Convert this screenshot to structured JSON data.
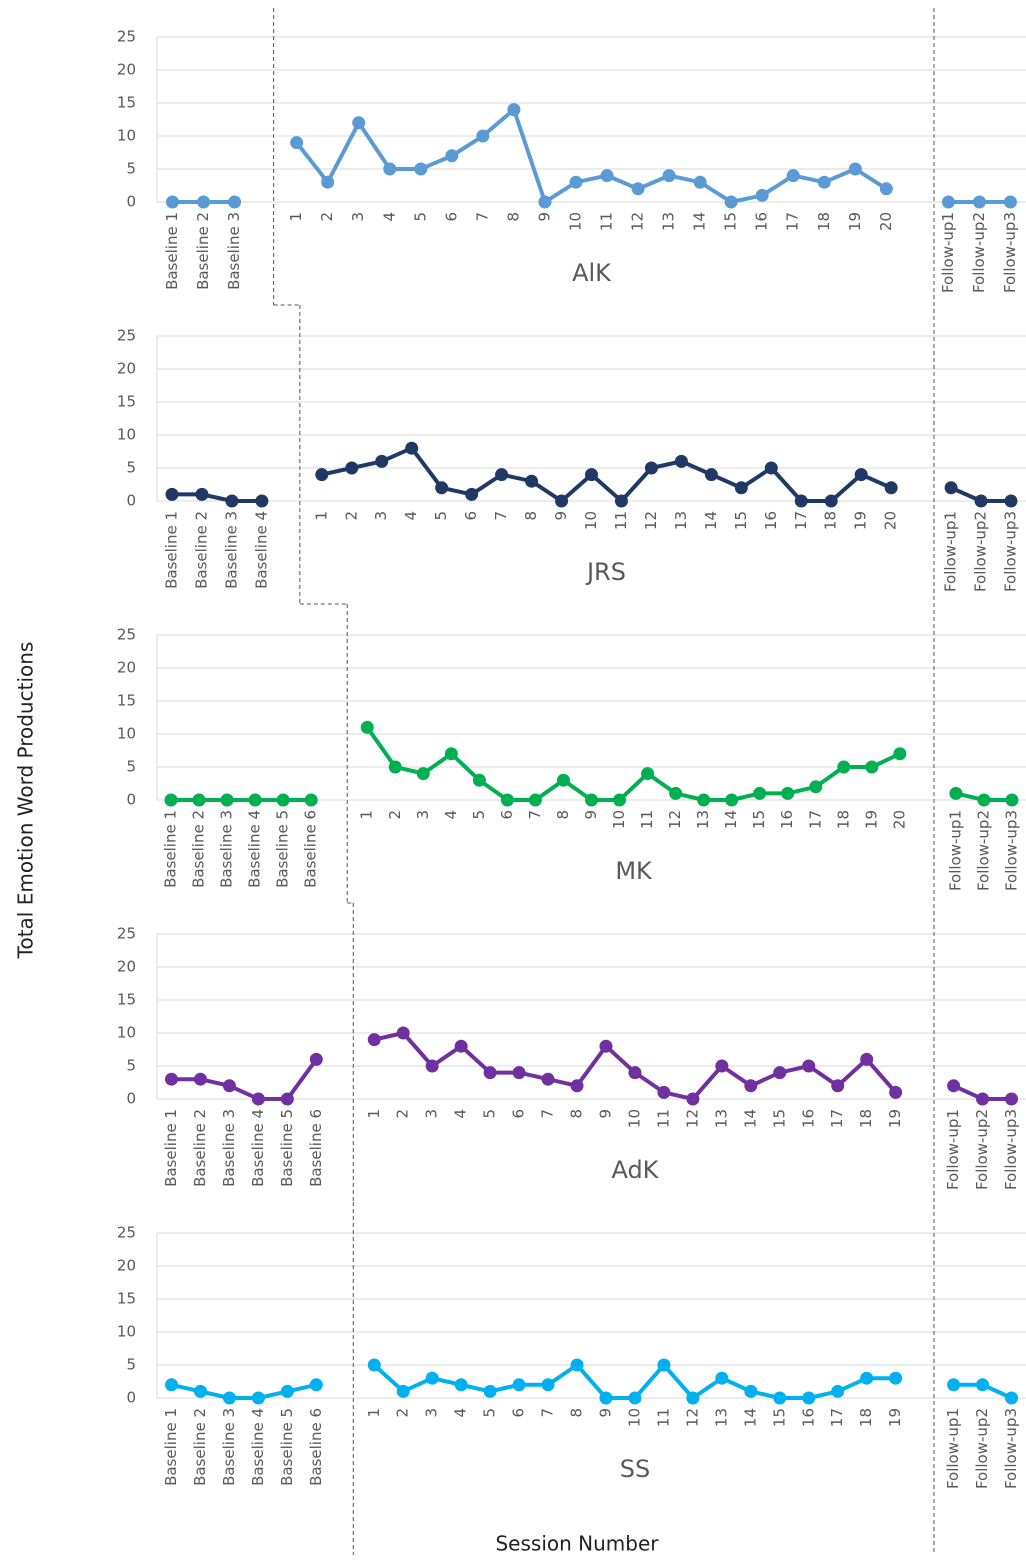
{
  "y_label": "Total Emotion Word Productions",
  "x_label": "Session Number",
  "chart_data": [
    {
      "type": "line",
      "title": "AlK",
      "color": "#5b9bd5",
      "ylim": [
        0,
        25
      ],
      "yticks": [
        0,
        5,
        10,
        15,
        20,
        25
      ],
      "grid": true,
      "phases": [
        {
          "categories": [
            "Baseline 1",
            "Baseline 2",
            "Baseline 3"
          ],
          "values": [
            0,
            0,
            0
          ]
        },
        {
          "categories": [
            "1",
            "2",
            "3",
            "4",
            "5",
            "6",
            "7",
            "8",
            "9",
            "10",
            "11",
            "12",
            "13",
            "14",
            "15",
            "16",
            "17",
            "18",
            "19",
            "20"
          ],
          "values": [
            9,
            3,
            12,
            5,
            5,
            7,
            10,
            14,
            0,
            3,
            4,
            2,
            4,
            3,
            0,
            1,
            4,
            3,
            5,
            2
          ]
        },
        {
          "categories": [
            "Follow-up1",
            "Follow-up2",
            "Follow-up3"
          ],
          "values": [
            0,
            0,
            0
          ]
        }
      ]
    },
    {
      "type": "line",
      "title": "JRS",
      "color": "#1f3864",
      "ylim": [
        0,
        25
      ],
      "yticks": [
        0,
        5,
        10,
        15,
        20,
        25
      ],
      "grid": true,
      "phases": [
        {
          "categories": [
            "Baseline 1",
            "Baseline 2",
            "Baseline 3",
            "Baseline 4"
          ],
          "values": [
            1,
            1,
            0,
            0
          ]
        },
        {
          "categories": [
            "1",
            "2",
            "3",
            "4",
            "5",
            "6",
            "7",
            "8",
            "9",
            "10",
            "11",
            "12",
            "13",
            "14",
            "15",
            "16",
            "17",
            "18",
            "19",
            "20"
          ],
          "values": [
            4,
            5,
            6,
            8,
            2,
            1,
            4,
            3,
            0,
            4,
            0,
            5,
            6,
            4,
            2,
            5,
            0,
            0,
            4,
            2
          ]
        },
        {
          "categories": [
            "Follow-up1",
            "Follow-up2",
            "Follow-up3"
          ],
          "values": [
            2,
            0,
            0
          ]
        }
      ]
    },
    {
      "type": "line",
      "title": "MK",
      "color": "#00b050",
      "ylim": [
        0,
        25
      ],
      "yticks": [
        0,
        5,
        10,
        15,
        20,
        25
      ],
      "grid": true,
      "phases": [
        {
          "categories": [
            "Baseline 1",
            "Baseline 2",
            "Baseline 3",
            "Baseline 4",
            "Baseline 5",
            "Baseline 6"
          ],
          "values": [
            0,
            0,
            0,
            0,
            0,
            0
          ]
        },
        {
          "categories": [
            "1",
            "2",
            "3",
            "4",
            "5",
            "6",
            "7",
            "8",
            "9",
            "10",
            "11",
            "12",
            "13",
            "14",
            "15",
            "16",
            "17",
            "18",
            "19",
            "20"
          ],
          "values": [
            11,
            5,
            4,
            7,
            3,
            0,
            0,
            3,
            0,
            0,
            4,
            1,
            0,
            0,
            1,
            1,
            2,
            5,
            5,
            7
          ]
        },
        {
          "categories": [
            "Follow-up1",
            "Follow-up2",
            "Follow-up3"
          ],
          "values": [
            1,
            0,
            0
          ]
        }
      ]
    },
    {
      "type": "line",
      "title": "AdK",
      "color": "#7030a0",
      "ylim": [
        0,
        25
      ],
      "yticks": [
        0,
        5,
        10,
        15,
        20,
        25
      ],
      "grid": true,
      "phases": [
        {
          "categories": [
            "Baseline 1",
            "Baseline 2",
            "Baseline 3",
            "Baseline 4",
            "Baseline 5",
            "Baseline 6"
          ],
          "values": [
            3,
            3,
            2,
            0,
            0,
            6
          ]
        },
        {
          "categories": [
            "1",
            "2",
            "3",
            "4",
            "5",
            "6",
            "7",
            "8",
            "9",
            "10",
            "11",
            "12",
            "13",
            "14",
            "15",
            "16",
            "17",
            "18",
            "19"
          ],
          "values": [
            9,
            10,
            5,
            8,
            4,
            4,
            3,
            2,
            8,
            4,
            1,
            0,
            5,
            2,
            4,
            5,
            2,
            6,
            1
          ]
        },
        {
          "categories": [
            "Follow-up1",
            "Follow-up2",
            "Follow-up3"
          ],
          "values": [
            2,
            0,
            0
          ]
        }
      ]
    },
    {
      "type": "line",
      "title": "SS",
      "color": "#00b0f0",
      "ylim": [
        0,
        25
      ],
      "yticks": [
        0,
        5,
        10,
        15,
        20,
        25
      ],
      "grid": true,
      "phases": [
        {
          "categories": [
            "Baseline 1",
            "Baseline 2",
            "Baseline 3",
            "Baseline 4",
            "Baseline 5",
            "Baseline 6"
          ],
          "values": [
            2,
            1,
            0,
            0,
            1,
            2
          ]
        },
        {
          "categories": [
            "1",
            "2",
            "3",
            "4",
            "5",
            "6",
            "7",
            "8",
            "9",
            "10",
            "11",
            "12",
            "13",
            "14",
            "15",
            "16",
            "17",
            "18",
            "19"
          ],
          "values": [
            5,
            1,
            3,
            2,
            1,
            2,
            2,
            5,
            0,
            0,
            5,
            0,
            3,
            1,
            0,
            0,
            1,
            3,
            3
          ]
        },
        {
          "categories": [
            "Follow-up1",
            "Follow-up2",
            "Follow-up3"
          ],
          "values": [
            2,
            2,
            0
          ]
        }
      ]
    }
  ]
}
